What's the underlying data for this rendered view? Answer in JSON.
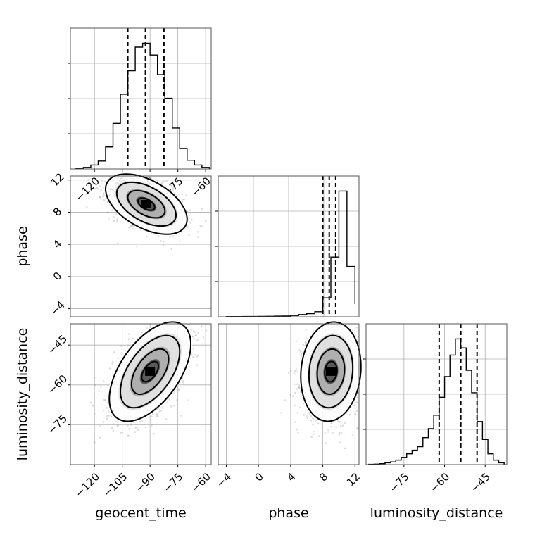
{
  "chart_data": {
    "type": "corner",
    "parameters": [
      "geocent_time",
      "phase",
      "luminosity_distance"
    ],
    "colors": {
      "lines": "#000000",
      "samples": "#9a9a9a",
      "grid": "#b0b0b0"
    },
    "grid": true,
    "panels": [
      {
        "id": "hist-geocent_time",
        "kind": "histogram",
        "param": "geocent_time",
        "xlim": [
          -133,
          -57
        ],
        "x_tick_labels": [
          "−120",
          "−105",
          "−90",
          "−75",
          "−60"
        ],
        "x_tick_values": [
          -120,
          -105,
          -90,
          -75,
          -60
        ],
        "bin_edges": [
          -130,
          -126,
          -122,
          -118,
          -114,
          -110,
          -106,
          -102,
          -98,
          -94,
          -90,
          -86,
          -82,
          -78,
          -74,
          -70,
          -66,
          -62,
          -58
        ],
        "counts": [
          1,
          2,
          5,
          10,
          28,
          58,
          95,
          125,
          155,
          160,
          145,
          120,
          90,
          52,
          26,
          11,
          5,
          2
        ],
        "quantiles": [
          -102,
          -92.5,
          -82.5
        ]
      },
      {
        "id": "scatter-geocent_time-phase",
        "kind": "2d",
        "x_param": "geocent_time",
        "y_param": "phase",
        "xlim": [
          -133,
          -57
        ],
        "ylim": [
          -5,
          12.5
        ],
        "y_tick_labels": [
          "−4",
          "0",
          "4",
          "8",
          "12"
        ],
        "y_tick_values": [
          -4,
          0,
          4,
          8,
          12
        ],
        "ylabel": "phase",
        "center": [
          -92,
          9
        ],
        "spread": [
          10,
          1.7
        ],
        "correlation": -0.5,
        "sample_count": 1400
      },
      {
        "id": "hist-phase",
        "kind": "histogram",
        "param": "phase",
        "xlim": [
          -5,
          12.5
        ],
        "bin_edges": [
          -4,
          -3,
          -2,
          -1,
          0,
          1,
          2,
          3,
          4,
          5,
          6,
          7,
          8,
          9,
          10,
          11,
          12
        ],
        "counts": [
          0.3,
          0.3,
          0.5,
          0.5,
          0.6,
          0.8,
          1,
          1.2,
          2,
          3.5,
          5,
          8,
          30,
          95,
          200,
          80,
          20
        ],
        "quantiles": [
          8.0,
          8.8,
          9.6
        ]
      },
      {
        "id": "scatter-geocent_time-luminosity_distance",
        "kind": "2d",
        "x_param": "geocent_time",
        "y_param": "luminosity_distance",
        "xlim": [
          -133,
          -57
        ],
        "ylim": [
          -90,
          -37
        ],
        "x_tick_labels": [
          "−120",
          "−105",
          "−90",
          "−75",
          "−60"
        ],
        "x_tick_values": [
          -120,
          -105,
          -90,
          -75,
          -60
        ],
        "y_tick_labels": [
          "−45",
          "−60",
          "−75"
        ],
        "y_tick_values": [
          -45,
          -60,
          -75
        ],
        "xlabel": "geocent_time",
        "ylabel": "luminosity_distance",
        "center": [
          -90,
          -55
        ],
        "spread": [
          10,
          8.5
        ],
        "correlation": 0.55,
        "sample_count": 1800
      },
      {
        "id": "scatter-phase-luminosity_distance",
        "kind": "2d",
        "x_param": "phase",
        "y_param": "luminosity_distance",
        "xlim": [
          -5,
          12.5
        ],
        "ylim": [
          -90,
          -37
        ],
        "x_tick_labels": [
          "−4",
          "0",
          "4",
          "8",
          "12"
        ],
        "x_tick_values": [
          -4,
          0,
          4,
          8,
          12
        ],
        "xlabel": "phase",
        "center": [
          9,
          -55
        ],
        "spread": [
          1.7,
          8.5
        ],
        "correlation": 0.1,
        "sample_count": 1400
      },
      {
        "id": "hist-luminosity_distance",
        "kind": "histogram",
        "param": "luminosity_distance",
        "xlim": [
          -89,
          -37
        ],
        "x_tick_labels": [
          "−75",
          "−60",
          "−45"
        ],
        "x_tick_values": [
          -75,
          -60,
          -45
        ],
        "xlabel": "luminosity_distance",
        "bin_edges": [
          -88,
          -86,
          -84,
          -82,
          -80,
          -78,
          -76,
          -74,
          -72,
          -70,
          -68,
          -66,
          -64,
          -62,
          -60,
          -58,
          -56,
          -54,
          -52,
          -50,
          -48,
          -46,
          -44,
          -42,
          -40,
          -38
        ],
        "counts": [
          0.3,
          0.5,
          1,
          2,
          3,
          5,
          8,
          12,
          16,
          20,
          30,
          40,
          55,
          75,
          98,
          122,
          140,
          130,
          105,
          80,
          48,
          28,
          12,
          5,
          2
        ],
        "quantiles": [
          -62,
          -54,
          -48
        ]
      }
    ]
  }
}
